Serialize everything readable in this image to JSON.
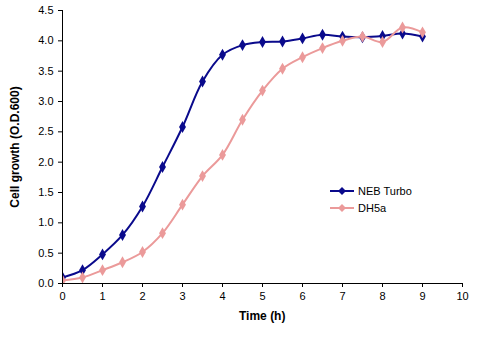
{
  "chart_data": {
    "type": "line",
    "x_label": "Time (h)",
    "y_label": "Cell growth (O.D.600)",
    "x": [
      0,
      0.5,
      1,
      1.5,
      2,
      2.5,
      3,
      3.5,
      4,
      4.5,
      5,
      5.5,
      6,
      6.5,
      7,
      7.5,
      8,
      8.5,
      9
    ],
    "series": [
      {
        "name": "NEB Turbo",
        "color": "#0a0a8c",
        "marker": "diamond",
        "values": [
          0.1,
          0.22,
          0.48,
          0.8,
          1.27,
          1.92,
          2.58,
          3.33,
          3.77,
          3.93,
          3.98,
          3.99,
          4.04,
          4.1,
          4.07,
          4.06,
          4.08,
          4.12,
          4.07
        ]
      },
      {
        "name": "DH5a",
        "color": "#eb9a9a",
        "marker": "diamond",
        "values": [
          0.05,
          0.1,
          0.22,
          0.35,
          0.52,
          0.83,
          1.3,
          1.77,
          2.12,
          2.7,
          3.18,
          3.54,
          3.73,
          3.88,
          4.0,
          4.07,
          3.98,
          4.22,
          4.14
        ]
      }
    ],
    "xlim": [
      0,
      10
    ],
    "xticks": [
      0,
      1,
      2,
      3,
      4,
      5,
      6,
      7,
      8,
      9,
      10
    ],
    "ylim": [
      0,
      4.5
    ],
    "yticks": [
      {
        "value": 0,
        "label": "0.0"
      },
      0.5,
      {
        "value": 1,
        "label": "1.0"
      },
      1.5,
      {
        "value": 2,
        "label": "2.0"
      },
      2.5,
      {
        "value": 3,
        "label": "3.0"
      },
      3.5,
      {
        "value": 4,
        "label": "4.0"
      },
      4.5
    ],
    "grid": false,
    "legend": "right"
  }
}
